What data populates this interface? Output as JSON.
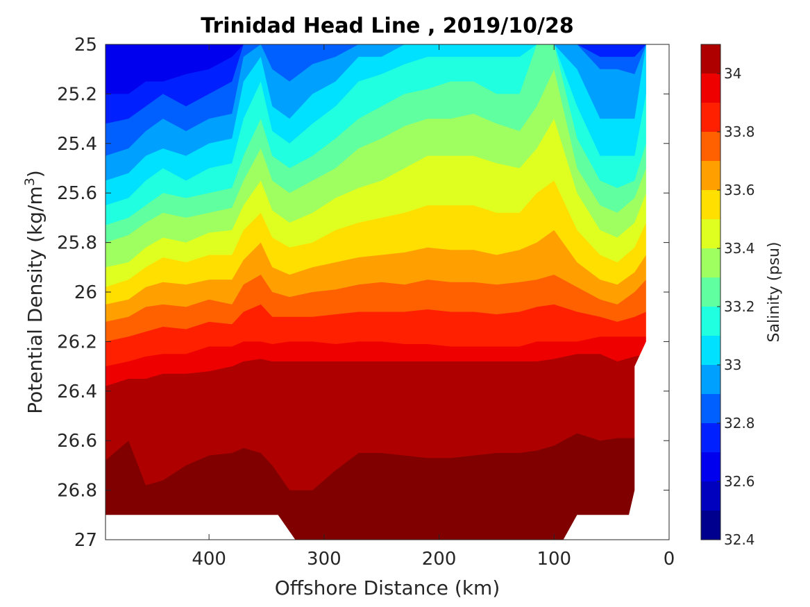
{
  "chart_data": {
    "type": "heatmap",
    "subtype": "filled-contour",
    "title": "Trinidad Head Line , 2019/10/28",
    "xlabel": "Offshore Distance (km)",
    "ylabel": "Potential Density (kg/m",
    "ylabel_sup": "3",
    "ylabel_close": ")",
    "xlim": [
      490,
      0
    ],
    "x_reversed": true,
    "ylim": [
      25,
      27
    ],
    "y_reversed": true,
    "x_ticks": [
      400,
      300,
      200,
      100,
      0
    ],
    "y_ticks": [
      25,
      25.2,
      25.4,
      25.6,
      25.8,
      26,
      26.2,
      26.4,
      26.6,
      26.8,
      27
    ],
    "y_tick_labels": [
      "25",
      "25.2",
      "25.4",
      "25.6",
      "25.8",
      "26",
      "26.2",
      "26.4",
      "26.6",
      "26.8",
      "27"
    ],
    "colorbar": {
      "label": "Salinity (psu)",
      "range": [
        32.4,
        34.1
      ],
      "ticks": [
        32.4,
        32.6,
        32.8,
        33,
        33.2,
        33.4,
        33.6,
        33.8,
        34
      ],
      "tick_labels": [
        "32.4",
        "32.6",
        "32.8",
        "33",
        "33.2",
        "33.4",
        "33.6",
        "33.8",
        "34"
      ],
      "levels": [
        32.4,
        32.5,
        32.6,
        32.7,
        32.8,
        32.9,
        33.0,
        33.1,
        33.2,
        33.3,
        33.4,
        33.5,
        33.6,
        33.7,
        33.8,
        33.9,
        34.0,
        34.1
      ],
      "colors": [
        "#00008f",
        "#0000bf",
        "#0000ef",
        "#0020ff",
        "#0060ff",
        "#00a0ff",
        "#00e0ff",
        "#20ffdf",
        "#60ff9f",
        "#9fff60",
        "#dfff20",
        "#ffdf00",
        "#ff9f00",
        "#ff6000",
        "#ff2000",
        "#ef0000",
        "#af0000",
        "#800000"
      ]
    },
    "x_stations": [
      490,
      470,
      455,
      440,
      420,
      400,
      380,
      370,
      355,
      345,
      330,
      310,
      290,
      270,
      250,
      230,
      210,
      190,
      170,
      150,
      130,
      115,
      100,
      80,
      60,
      45,
      30,
      20
    ],
    "contours": [
      {
        "level": 32.6,
        "y": [
          25.2,
          25.2,
          25.15,
          25.15,
          25.12,
          25.1,
          25.05,
          25.0,
          25.0,
          25.0,
          25.0,
          25.0,
          25.0,
          25.0,
          25.0,
          25.0,
          25.0,
          25.0,
          25.0,
          25.0,
          25.0,
          25.0,
          25.0,
          25.0,
          25.0,
          25.0,
          25.0,
          25.0
        ]
      },
      {
        "level": 32.7,
        "y": [
          25.32,
          25.3,
          25.25,
          25.2,
          25.25,
          25.2,
          25.15,
          25.0,
          25.0,
          25.0,
          25.0,
          25.0,
          25.0,
          25.0,
          25.0,
          25.0,
          25.0,
          25.0,
          25.0,
          25.0,
          25.0,
          25.0,
          25.0,
          25.0,
          25.05,
          25.05,
          25.05,
          25.0
        ]
      },
      {
        "level": 32.8,
        "y": [
          25.45,
          25.42,
          25.35,
          25.3,
          25.35,
          25.3,
          25.28,
          25.05,
          25.0,
          25.1,
          25.15,
          25.08,
          25.05,
          25.0,
          25.0,
          25.0,
          25.0,
          25.0,
          25.0,
          25.0,
          25.0,
          25.0,
          25.0,
          25.0,
          25.1,
          25.1,
          25.12,
          25.0
        ]
      },
      {
        "level": 32.9,
        "y": [
          25.55,
          25.52,
          25.45,
          25.42,
          25.45,
          25.4,
          25.38,
          25.15,
          25.05,
          25.25,
          25.3,
          25.2,
          25.15,
          25.05,
          25.05,
          25.0,
          25.0,
          25.0,
          25.0,
          25.0,
          25.0,
          25.0,
          25.0,
          25.1,
          25.3,
          25.3,
          25.3,
          25.0
        ]
      },
      {
        "level": 33.0,
        "y": [
          25.65,
          25.62,
          25.55,
          25.5,
          25.55,
          25.5,
          25.48,
          25.3,
          25.15,
          25.35,
          25.4,
          25.32,
          25.25,
          25.15,
          25.12,
          25.08,
          25.05,
          25.05,
          25.05,
          25.05,
          25.05,
          25.0,
          25.0,
          25.25,
          25.45,
          25.45,
          25.45,
          25.2
        ]
      },
      {
        "level": 33.1,
        "y": [
          25.73,
          25.7,
          25.65,
          25.6,
          25.62,
          25.6,
          25.58,
          25.45,
          25.3,
          25.45,
          25.5,
          25.45,
          25.38,
          25.3,
          25.25,
          25.2,
          25.18,
          25.15,
          25.15,
          25.2,
          25.2,
          25.0,
          25.0,
          25.38,
          25.55,
          25.58,
          25.55,
          25.4
        ]
      },
      {
        "level": 33.2,
        "y": [
          25.8,
          25.77,
          25.72,
          25.68,
          25.7,
          25.68,
          25.66,
          25.55,
          25.42,
          25.55,
          25.6,
          25.55,
          25.5,
          25.42,
          25.38,
          25.33,
          25.3,
          25.3,
          25.28,
          25.32,
          25.35,
          25.25,
          25.1,
          25.5,
          25.65,
          25.68,
          25.62,
          25.5
        ]
      },
      {
        "level": 33.3,
        "y": [
          25.9,
          25.88,
          25.82,
          25.78,
          25.8,
          25.76,
          25.75,
          25.65,
          25.55,
          25.67,
          25.72,
          25.68,
          25.62,
          25.58,
          25.55,
          25.5,
          25.45,
          25.45,
          25.45,
          25.48,
          25.5,
          25.42,
          25.3,
          25.6,
          25.75,
          25.78,
          25.72,
          25.6
        ]
      },
      {
        "level": 33.4,
        "y": [
          25.98,
          25.95,
          25.9,
          25.86,
          25.88,
          25.85,
          25.85,
          25.75,
          25.68,
          25.78,
          25.82,
          25.8,
          25.75,
          25.72,
          25.7,
          25.68,
          25.65,
          25.65,
          25.65,
          25.68,
          25.68,
          25.6,
          25.55,
          25.75,
          25.85,
          25.88,
          25.82,
          25.72
        ]
      },
      {
        "level": 33.5,
        "y": [
          26.05,
          26.03,
          25.98,
          25.96,
          25.97,
          25.95,
          25.95,
          25.87,
          25.8,
          25.9,
          25.93,
          25.9,
          25.88,
          25.86,
          25.85,
          25.84,
          25.82,
          25.83,
          25.83,
          25.85,
          25.83,
          25.8,
          25.75,
          25.88,
          25.95,
          25.97,
          25.92,
          25.85
        ]
      },
      {
        "level": 33.6,
        "y": [
          26.12,
          26.1,
          26.06,
          26.05,
          26.06,
          26.03,
          26.05,
          25.97,
          25.93,
          26.0,
          26.02,
          26.0,
          25.99,
          25.97,
          25.96,
          25.97,
          25.95,
          25.96,
          25.96,
          25.97,
          25.96,
          25.95,
          25.93,
          25.98,
          26.03,
          26.05,
          26.0,
          25.95
        ]
      },
      {
        "level": 33.7,
        "y": [
          26.2,
          26.18,
          26.16,
          26.14,
          26.15,
          26.12,
          26.13,
          26.08,
          26.05,
          26.1,
          26.1,
          26.1,
          26.09,
          26.08,
          26.08,
          26.08,
          26.07,
          26.08,
          26.08,
          26.09,
          26.08,
          26.06,
          26.05,
          26.08,
          26.1,
          26.12,
          26.1,
          26.08
        ]
      },
      {
        "level": 33.8,
        "y": [
          26.3,
          26.28,
          26.26,
          26.25,
          26.25,
          26.22,
          26.22,
          26.2,
          26.2,
          26.21,
          26.2,
          26.2,
          26.21,
          26.2,
          26.2,
          26.21,
          26.21,
          26.22,
          26.22,
          26.22,
          26.22,
          26.2,
          26.2,
          26.2,
          26.18,
          26.18,
          26.18,
          26.18
        ]
      },
      {
        "level": 33.9,
        "y": [
          26.38,
          26.35,
          26.35,
          26.33,
          26.33,
          26.32,
          26.3,
          26.28,
          26.27,
          26.28,
          26.28,
          26.28,
          26.28,
          26.28,
          26.28,
          26.28,
          26.28,
          26.28,
          26.28,
          26.28,
          26.28,
          26.28,
          26.27,
          26.25,
          26.25,
          26.28,
          26.26,
          26.25
        ]
      },
      {
        "level": 34.0,
        "y": [
          26.68,
          26.6,
          26.78,
          26.76,
          26.7,
          26.66,
          26.65,
          26.63,
          26.65,
          26.7,
          26.8,
          26.8,
          26.72,
          26.65,
          26.65,
          26.66,
          26.67,
          26.67,
          26.66,
          26.65,
          26.65,
          26.64,
          26.62,
          26.57,
          26.6,
          26.59,
          26.59,
          26.55
        ]
      }
    ],
    "data_coverage": {
      "description": "colored region of the section; blank (no data) elsewhere",
      "x": [
        490,
        490,
        340,
        325,
        290,
        270,
        250,
        230,
        210,
        190,
        170,
        150,
        130,
        115,
        100,
        92,
        80,
        60,
        45,
        35,
        30,
        30,
        20
      ],
      "y_bottom": [
        26.9,
        26.9,
        26.9,
        27.0,
        27.0,
        27.0,
        27.0,
        27.0,
        27.0,
        27.0,
        27.0,
        27.0,
        27.0,
        27.0,
        27.0,
        27.0,
        26.9,
        26.9,
        26.9,
        26.9,
        26.8,
        26.3,
        26.2
      ]
    }
  }
}
